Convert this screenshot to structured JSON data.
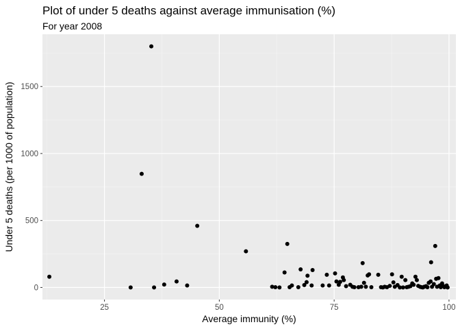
{
  "chart_data": {
    "type": "scatter",
    "title": "Plot of under 5 deaths against average immunisation (%)",
    "subtitle": "For year 2008",
    "xlabel": "Average immunity (%)",
    "ylabel": "Under 5 deaths (per 1000 of population)",
    "xlim": [
      11.5,
      101.5
    ],
    "ylim": [
      -90,
      1890
    ],
    "xticks": [
      25,
      50,
      75,
      100
    ],
    "yticks": [
      0,
      500,
      1000,
      1500
    ],
    "grid": true,
    "points": [
      [
        13,
        80
      ],
      [
        30.7,
        0
      ],
      [
        33.1,
        848
      ],
      [
        35.2,
        1800
      ],
      [
        35.8,
        0
      ],
      [
        38,
        22
      ],
      [
        40.7,
        45
      ],
      [
        43,
        15
      ],
      [
        45.2,
        460
      ],
      [
        55.8,
        270
      ],
      [
        61.5,
        5
      ],
      [
        62.2,
        2
      ],
      [
        63.1,
        0
      ],
      [
        64.2,
        112
      ],
      [
        64.8,
        325
      ],
      [
        65.3,
        2
      ],
      [
        65.8,
        15
      ],
      [
        67.2,
        2
      ],
      [
        67.7,
        135
      ],
      [
        68.5,
        18
      ],
      [
        69,
        40
      ],
      [
        69.2,
        88
      ],
      [
        70.1,
        15
      ],
      [
        70.3,
        130
      ],
      [
        72.5,
        15
      ],
      [
        73.4,
        95
      ],
      [
        73.9,
        15
      ],
      [
        75.2,
        105
      ],
      [
        75.5,
        45
      ],
      [
        76,
        20
      ],
      [
        76.3,
        42
      ],
      [
        76.9,
        75
      ],
      [
        77.1,
        55
      ],
      [
        77.6,
        10
      ],
      [
        78.5,
        20
      ],
      [
        79,
        5
      ],
      [
        79.4,
        2
      ],
      [
        80.3,
        2
      ],
      [
        80.9,
        5
      ],
      [
        81.2,
        182
      ],
      [
        81.5,
        35
      ],
      [
        81.9,
        5
      ],
      [
        82.3,
        90
      ],
      [
        82.6,
        98
      ],
      [
        83.1,
        2
      ],
      [
        84.6,
        95
      ],
      [
        85.2,
        2
      ],
      [
        85.6,
        0
      ],
      [
        86,
        5
      ],
      [
        86.5,
        2
      ],
      [
        87.1,
        12
      ],
      [
        87.6,
        98
      ],
      [
        87.9,
        38
      ],
      [
        88.2,
        5
      ],
      [
        88.8,
        18
      ],
      [
        89.3,
        0
      ],
      [
        89.7,
        80
      ],
      [
        90,
        0
      ],
      [
        90.5,
        55
      ],
      [
        90.8,
        2
      ],
      [
        91.2,
        5
      ],
      [
        91.6,
        10
      ],
      [
        92,
        30
      ],
      [
        92.3,
        20
      ],
      [
        92.7,
        80
      ],
      [
        93,
        55
      ],
      [
        93.3,
        12
      ],
      [
        93.7,
        5
      ],
      [
        94,
        2
      ],
      [
        94.3,
        0
      ],
      [
        94.6,
        5
      ],
      [
        95,
        10
      ],
      [
        95.3,
        2
      ],
      [
        95.6,
        35
      ],
      [
        96,
        45
      ],
      [
        96.1,
        188
      ],
      [
        96.3,
        5
      ],
      [
        96.7,
        25
      ],
      [
        97,
        310
      ],
      [
        97.2,
        65
      ],
      [
        97.4,
        5
      ],
      [
        97.7,
        70
      ],
      [
        98,
        15
      ],
      [
        98.2,
        2
      ],
      [
        98.5,
        30
      ],
      [
        98.8,
        10
      ],
      [
        99,
        2
      ],
      [
        99.2,
        5
      ],
      [
        99.5,
        15
      ],
      [
        99.7,
        0
      ]
    ]
  }
}
